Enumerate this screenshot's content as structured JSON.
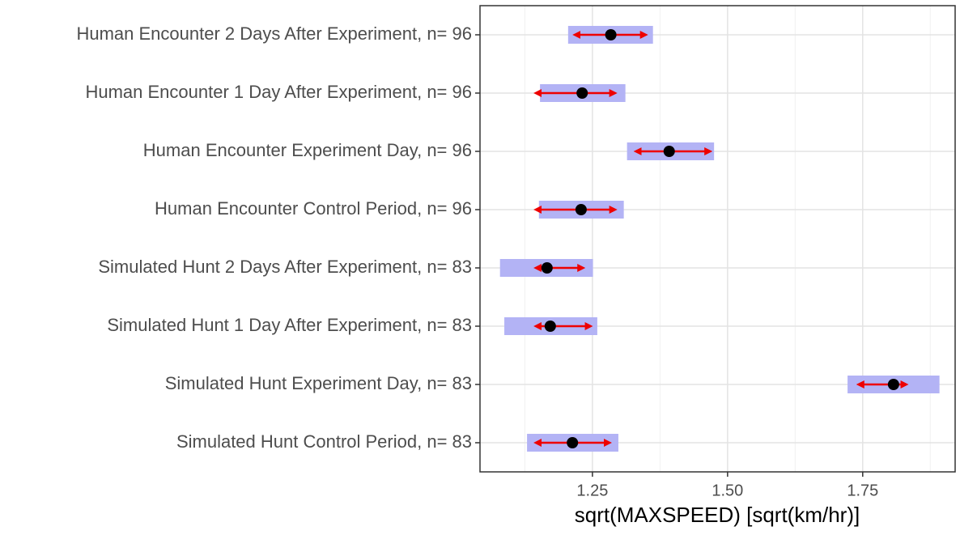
{
  "chart_data": {
    "type": "interval",
    "x_label": "sqrt(MAXSPEED) [sqrt(km/hr)]",
    "categories": [
      "Human Encounter 2 Days After Experiment, n= 96",
      "Human Encounter 1 Day After Experiment, n= 96",
      "Human Encounter Experiment Day, n= 96",
      "Human Encounter Control Period, n= 96",
      "Simulated Hunt 2 Days After Experiment, n= 83",
      "Simulated Hunt 1 Day After Experiment, n= 83",
      "Simulated Hunt Experiment Day, n= 83",
      "Simulated Hunt Control Period, n= 83"
    ],
    "estimate": [
      1.284,
      1.231,
      1.392,
      1.229,
      1.166,
      1.172,
      1.807,
      1.213
    ],
    "ci_low": [
      1.205,
      1.153,
      1.314,
      1.151,
      1.079,
      1.087,
      1.722,
      1.129
    ],
    "ci_high": [
      1.362,
      1.311,
      1.475,
      1.308,
      1.251,
      1.259,
      1.892,
      1.298
    ],
    "arrow_low": [
      1.207,
      1.135,
      1.32,
      1.135,
      1.135,
      1.135,
      1.732,
      1.135
    ],
    "arrow_high": [
      1.359,
      1.302,
      1.478,
      1.302,
      1.243,
      1.257,
      1.841,
      1.292
    ],
    "xlim": [
      1.042,
      1.921
    ],
    "xticks": [
      1.25,
      {
        "value": 1.5,
        "label": "1.50"
      },
      1.75
    ],
    "minor_xticks": [
      1.125,
      1.375,
      1.625,
      1.875
    ],
    "band_color": "#b3b3f5",
    "arrow_color": "#ee0000",
    "point_color": "#000000",
    "grid": true
  }
}
